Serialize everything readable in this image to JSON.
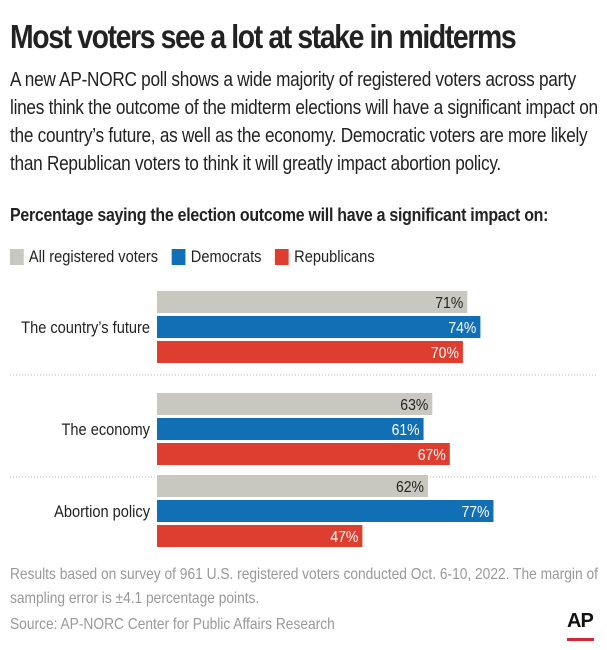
{
  "header": {
    "title": "Most voters see a lot at stake in midterms",
    "subtitle": "A new AP-NORC poll shows a wide majority of registered voters across party lines think the outcome of the midterm elections will have a significant impact on the country’s future, as well as the economy. Democratic voters are more likely than Republican voters to think it will greatly impact abortion policy."
  },
  "chart_data": {
    "type": "bar",
    "orientation": "horizontal",
    "title": "Percentage saying the election outcome will have a significant impact on:",
    "categories": [
      "The country’s future",
      "The economy",
      "Abortion policy"
    ],
    "series": [
      {
        "name": "All registered voters",
        "color": "#c8c8c0",
        "values": [
          71,
          63,
          62
        ],
        "labels": [
          "71%",
          "63%",
          "62%"
        ]
      },
      {
        "name": "Democrats",
        "color": "#1170b5",
        "values": [
          74,
          61,
          77
        ],
        "labels": [
          "74%",
          "61%",
          "77%"
        ]
      },
      {
        "name": "Republicans",
        "color": "#de3e2f",
        "values": [
          70,
          67,
          47
        ],
        "labels": [
          "70%",
          "67%",
          "47%"
        ]
      }
    ],
    "legend": "top-left",
    "grid": false
  },
  "footer": {
    "note": "Results based on survey of 961 U.S. registered voters conducted Oct. 6-10, 2022. The margin of sampling error is ±4.1 percentage points.",
    "source": "Source: AP-NORC Center for Public Affairs Research",
    "logo": "AP"
  }
}
